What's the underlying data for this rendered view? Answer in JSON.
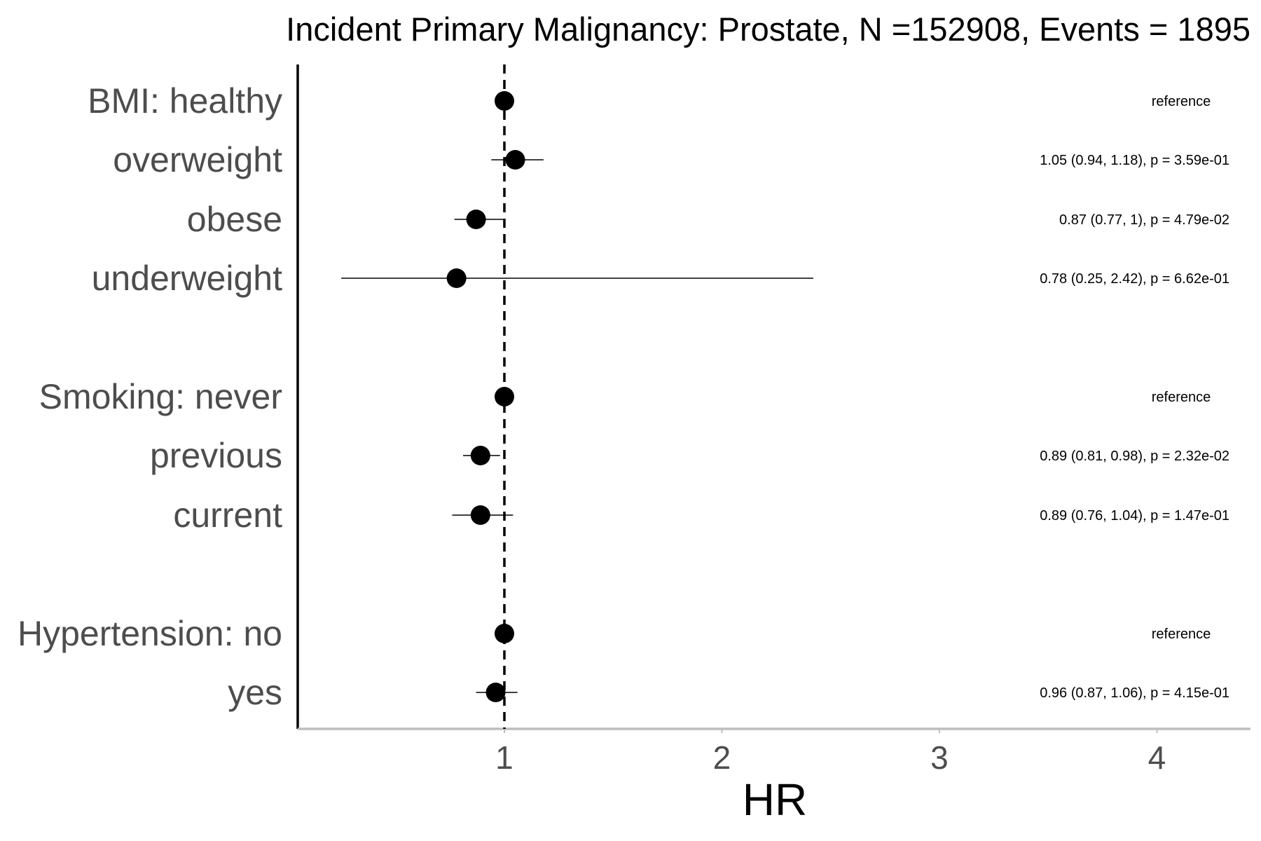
{
  "chart_data": {
    "type": "scatter",
    "title": "Incident Primary Malignancy: Prostate, N =152908, Events = 1895",
    "xlabel": "HR",
    "ylabel": "",
    "xlim": [
      0.05,
      4.43
    ],
    "xticks": [
      1,
      2,
      3,
      4
    ],
    "xtick_labels": [
      "1",
      "2",
      "3",
      "4"
    ],
    "reference_line": 1,
    "grid": false,
    "rows": [
      {
        "label": "BMI: healthy",
        "hr": 1.0,
        "lower": null,
        "upper": null,
        "annotation": "reference"
      },
      {
        "label": "overweight",
        "hr": 1.05,
        "lower": 0.94,
        "upper": 1.18,
        "annotation": "1.05 (0.94, 1.18), p = 3.59e-01"
      },
      {
        "label": "obese",
        "hr": 0.87,
        "lower": 0.77,
        "upper": 1.0,
        "annotation": "0.87 (0.77, 1), p = 4.79e-02"
      },
      {
        "label": "underweight",
        "hr": 0.78,
        "lower": 0.25,
        "upper": 2.42,
        "annotation": "0.78 (0.25, 2.42), p = 6.62e-01"
      },
      {
        "label": "Smoking: never",
        "hr": 1.0,
        "lower": null,
        "upper": null,
        "annotation": "reference"
      },
      {
        "label": "previous",
        "hr": 0.89,
        "lower": 0.81,
        "upper": 0.98,
        "annotation": "0.89 (0.81, 0.98), p = 2.32e-02"
      },
      {
        "label": "current",
        "hr": 0.89,
        "lower": 0.76,
        "upper": 1.04,
        "annotation": "0.89 (0.76, 1.04), p = 1.47e-01"
      },
      {
        "label": "Hypertension: no",
        "hr": 1.0,
        "lower": null,
        "upper": null,
        "annotation": "reference"
      },
      {
        "label": "yes",
        "hr": 0.96,
        "lower": 0.87,
        "upper": 1.06,
        "annotation": "0.96 (0.87, 1.06), p = 4.15e-01"
      }
    ],
    "colors": {
      "point": "#000000",
      "row_label": "#4d4d4d",
      "tick_label": "#4d4d4d",
      "x_axis_line": "#bebebe",
      "y_axis_line": "#000000"
    }
  }
}
